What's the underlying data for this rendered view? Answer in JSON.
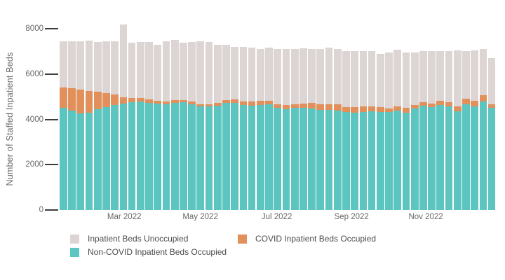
{
  "chart_data": {
    "type": "bar",
    "stacked": true,
    "title": "",
    "xlabel": "",
    "ylabel": "Number of Staffed Inpatient Beds",
    "legend_position": "bottom",
    "grid": false,
    "ylim": [
      0,
      8000
    ],
    "y_ticks": [
      0,
      2000,
      4000,
      6000,
      8000
    ],
    "x_ticks": [
      {
        "label": "Mar 2022",
        "pos": 0.148
      },
      {
        "label": "May 2022",
        "pos": 0.322
      },
      {
        "label": "Jul 2022",
        "pos": 0.497
      },
      {
        "label": "Sep 2022",
        "pos": 0.668
      },
      {
        "label": "Nov 2022",
        "pos": 0.838
      }
    ],
    "x": [
      "2022-01-07",
      "2022-01-14",
      "2022-01-21",
      "2022-01-28",
      "2022-02-04",
      "2022-02-11",
      "2022-02-18",
      "2022-02-25",
      "2022-03-04",
      "2022-03-11",
      "2022-03-18",
      "2022-03-25",
      "2022-04-01",
      "2022-04-08",
      "2022-04-15",
      "2022-04-22",
      "2022-04-29",
      "2022-05-06",
      "2022-05-13",
      "2022-05-20",
      "2022-05-27",
      "2022-06-03",
      "2022-06-10",
      "2022-06-17",
      "2022-06-24",
      "2022-07-01",
      "2022-07-08",
      "2022-07-15",
      "2022-07-22",
      "2022-07-29",
      "2022-08-05",
      "2022-08-12",
      "2022-08-19",
      "2022-08-26",
      "2022-09-02",
      "2022-09-09",
      "2022-09-16",
      "2022-09-23",
      "2022-09-30",
      "2022-10-07",
      "2022-10-14",
      "2022-10-21",
      "2022-10-28",
      "2022-11-04",
      "2022-11-11",
      "2022-11-18",
      "2022-11-25",
      "2022-12-02",
      "2022-12-09",
      "2022-12-16",
      "2022-12-23"
    ],
    "series": [
      {
        "name": "Inpatient Beds Unoccupied",
        "color": "#dcd5d4",
        "values": [
          2050,
          2070,
          2150,
          2230,
          2190,
          2280,
          2340,
          3220,
          2430,
          2450,
          2510,
          2470,
          2660,
          2640,
          2520,
          2600,
          2770,
          2750,
          2560,
          2440,
          2340,
          2390,
          2380,
          2290,
          2350,
          2410,
          2470,
          2470,
          2420,
          2370,
          2430,
          2500,
          2470,
          2470,
          2470,
          2450,
          2460,
          2350,
          2480,
          2500,
          2460,
          2310,
          2230,
          2310,
          2190,
          2230,
          2450,
          2075,
          2210,
          2010,
          2030
        ]
      },
      {
        "name": "COVID Inpatient Beds Occupied",
        "color": "#e18f5b",
        "values": [
          900,
          980,
          1050,
          970,
          780,
          620,
          460,
          280,
          200,
          170,
          150,
          130,
          120,
          120,
          110,
          120,
          100,
          110,
          120,
          120,
          130,
          160,
          190,
          190,
          150,
          160,
          160,
          130,
          190,
          250,
          240,
          250,
          250,
          220,
          230,
          220,
          200,
          210,
          150,
          160,
          200,
          160,
          160,
          160,
          190,
          190,
          220,
          245,
          250,
          280,
          160
        ]
      },
      {
        "name": "Non-COVID Inpatient Beds Occupied",
        "color": "#5cc5c0",
        "values": [
          4500,
          4400,
          4250,
          4280,
          4450,
          4550,
          4640,
          4700,
          4750,
          4780,
          4740,
          4700,
          4680,
          4740,
          4750,
          4680,
          4580,
          4560,
          4600,
          4740,
          4740,
          4640,
          4610,
          4640,
          4680,
          4520,
          4460,
          4520,
          4520,
          4490,
          4430,
          4430,
          4400,
          4330,
          4300,
          4340,
          4360,
          4340,
          4330,
          4400,
          4300,
          4480,
          4610,
          4550,
          4640,
          4580,
          4360,
          4680,
          4580,
          4800,
          4520
        ]
      }
    ],
    "legend": {
      "items": [
        {
          "series": 0,
          "x": 100,
          "y": 334
        },
        {
          "series": 1,
          "x": 339,
          "y": 334
        },
        {
          "series": 2,
          "x": 100,
          "y": 353
        }
      ]
    }
  }
}
